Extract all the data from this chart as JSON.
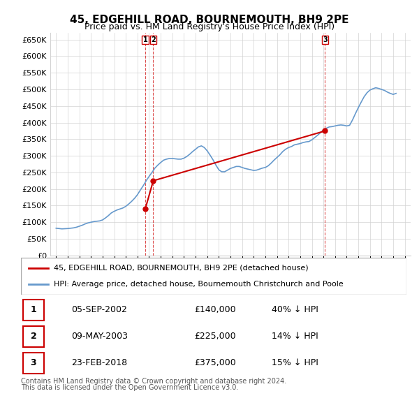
{
  "title": "45, EDGEHILL ROAD, BOURNEMOUTH, BH9 2PE",
  "subtitle": "Price paid vs. HM Land Registry's House Price Index (HPI)",
  "ylabel_ticks": [
    "£0",
    "£50K",
    "£100K",
    "£150K",
    "£200K",
    "£250K",
    "£300K",
    "£350K",
    "£400K",
    "£450K",
    "£500K",
    "£550K",
    "£600K",
    "£650K"
  ],
  "ytick_values": [
    0,
    50000,
    100000,
    150000,
    200000,
    250000,
    300000,
    350000,
    400000,
    450000,
    500000,
    550000,
    600000,
    650000
  ],
  "ylim": [
    0,
    670000
  ],
  "xlim_start": 1994.5,
  "xlim_end": 2025.5,
  "legend_property_label": "45, EDGEHILL ROAD, BOURNEMOUTH, BH9 2PE (detached house)",
  "legend_hpi_label": "HPI: Average price, detached house, Bournemouth Christchurch and Poole",
  "property_color": "#cc0000",
  "hpi_color": "#6699cc",
  "transactions": [
    {
      "num": 1,
      "date_str": "05-SEP-2002",
      "price": 140000,
      "pct": "40%",
      "direction": "↓",
      "year": 2002.67
    },
    {
      "num": 2,
      "date_str": "09-MAY-2003",
      "price": 225000,
      "pct": "14%",
      "direction": "↓",
      "year": 2003.36
    },
    {
      "num": 3,
      "date_str": "23-FEB-2018",
      "price": 375000,
      "pct": "15%",
      "direction": "↓",
      "year": 2018.14
    }
  ],
  "footnote1": "Contains HM Land Registry data © Crown copyright and database right 2024.",
  "footnote2": "This data is licensed under the Open Government Licence v3.0.",
  "hpi_data": {
    "years": [
      1995,
      1995.25,
      1995.5,
      1995.75,
      1996,
      1996.25,
      1996.5,
      1996.75,
      1997,
      1997.25,
      1997.5,
      1997.75,
      1998,
      1998.25,
      1998.5,
      1998.75,
      1999,
      1999.25,
      1999.5,
      1999.75,
      2000,
      2000.25,
      2000.5,
      2000.75,
      2001,
      2001.25,
      2001.5,
      2001.75,
      2002,
      2002.25,
      2002.5,
      2002.75,
      2003,
      2003.25,
      2003.5,
      2003.75,
      2004,
      2004.25,
      2004.5,
      2004.75,
      2005,
      2005.25,
      2005.5,
      2005.75,
      2006,
      2006.25,
      2006.5,
      2006.75,
      2007,
      2007.25,
      2007.5,
      2007.75,
      2008,
      2008.25,
      2008.5,
      2008.75,
      2009,
      2009.25,
      2009.5,
      2009.75,
      2010,
      2010.25,
      2010.5,
      2010.75,
      2011,
      2011.25,
      2011.5,
      2011.75,
      2012,
      2012.25,
      2012.5,
      2012.75,
      2013,
      2013.25,
      2013.5,
      2013.75,
      2014,
      2014.25,
      2014.5,
      2014.75,
      2015,
      2015.25,
      2015.5,
      2015.75,
      2016,
      2016.25,
      2016.5,
      2016.75,
      2017,
      2017.25,
      2017.5,
      2017.75,
      2018,
      2018.25,
      2018.5,
      2018.75,
      2019,
      2019.25,
      2019.5,
      2019.75,
      2020,
      2020.25,
      2020.5,
      2020.75,
      2021,
      2021.25,
      2021.5,
      2021.75,
      2022,
      2022.25,
      2022.5,
      2022.75,
      2023,
      2023.25,
      2023.5,
      2023.75,
      2024,
      2024.25
    ],
    "values": [
      82000,
      81000,
      80000,
      80500,
      81000,
      82000,
      83000,
      85000,
      88000,
      91000,
      95000,
      98000,
      100000,
      102000,
      103000,
      104000,
      107000,
      113000,
      120000,
      128000,
      133000,
      137000,
      140000,
      143000,
      148000,
      155000,
      163000,
      172000,
      183000,
      197000,
      210000,
      225000,
      238000,
      250000,
      263000,
      272000,
      280000,
      287000,
      290000,
      292000,
      292000,
      291000,
      290000,
      290000,
      293000,
      298000,
      305000,
      313000,
      320000,
      327000,
      330000,
      325000,
      315000,
      302000,
      288000,
      272000,
      258000,
      252000,
      252000,
      257000,
      262000,
      265000,
      268000,
      268000,
      265000,
      262000,
      260000,
      258000,
      256000,
      257000,
      260000,
      263000,
      265000,
      270000,
      278000,
      287000,
      295000,
      303000,
      313000,
      320000,
      325000,
      328000,
      333000,
      335000,
      337000,
      340000,
      342000,
      343000,
      348000,
      355000,
      362000,
      370000,
      378000,
      383000,
      387000,
      388000,
      390000,
      392000,
      393000,
      392000,
      390000,
      392000,
      408000,
      427000,
      445000,
      462000,
      478000,
      490000,
      498000,
      502000,
      505000,
      503000,
      500000,
      497000,
      492000,
      488000,
      485000,
      488000
    ]
  },
  "property_data": {
    "years": [
      2002.67,
      2003.36,
      2018.14
    ],
    "values": [
      140000,
      225000,
      375000
    ]
  },
  "property_line_segments": [
    {
      "x": [
        2002.67,
        2003.36
      ],
      "y": [
        140000,
        225000
      ]
    },
    {
      "x": [
        2003.36,
        2018.14
      ],
      "y": [
        225000,
        375000
      ]
    }
  ]
}
